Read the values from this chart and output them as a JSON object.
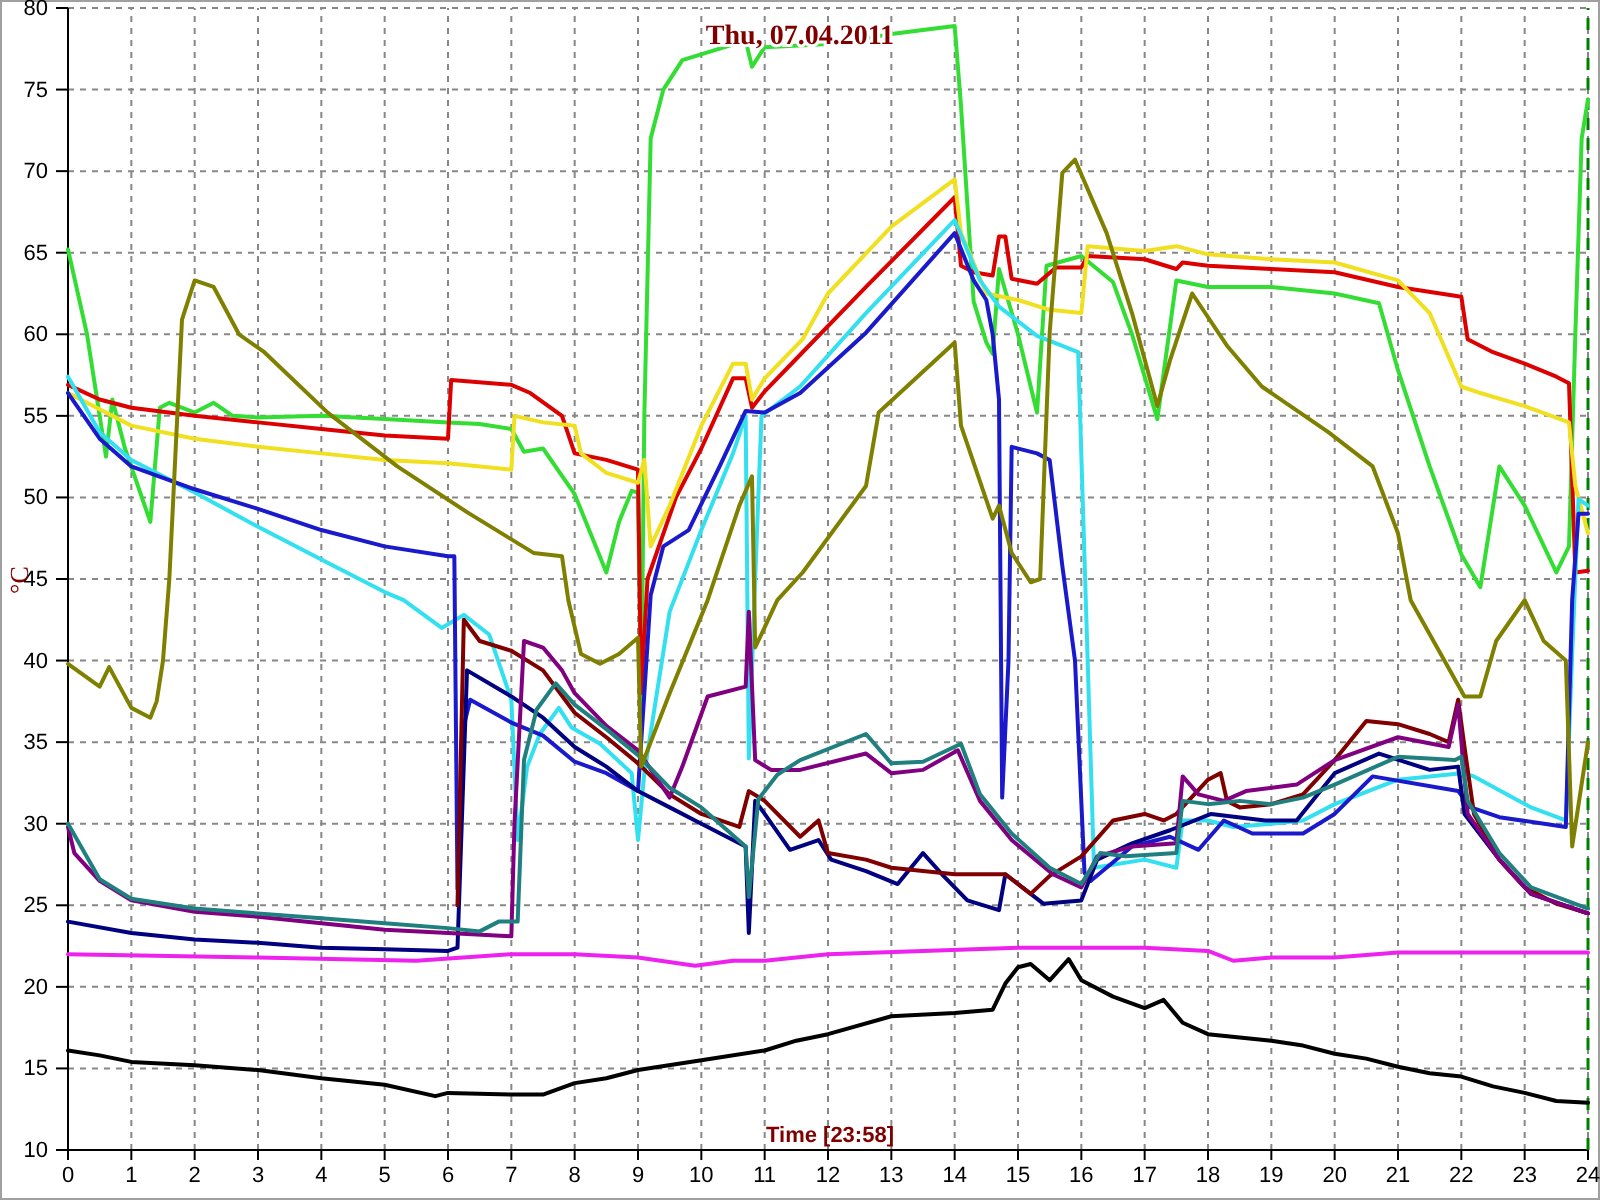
{
  "chart_data": {
    "type": "line",
    "title": "Thu, 07.04.2011",
    "xlabel": "Time [23:58]",
    "ylabel": "°C",
    "xlim": [
      0,
      24
    ],
    "xticks": [
      0,
      1,
      2,
      3,
      4,
      5,
      6,
      7,
      8,
      9,
      10,
      11,
      12,
      13,
      14,
      15,
      16,
      17,
      18,
      19,
      20,
      21,
      22,
      23,
      24
    ],
    "ylim": [
      10,
      80
    ],
    "yticks": [
      10,
      15,
      20,
      25,
      30,
      35,
      40,
      45,
      50,
      55,
      60,
      65,
      70,
      75,
      80
    ],
    "grid": true,
    "marker": "none",
    "line_style": "solid",
    "ref_lines": [
      {
        "axis": "x",
        "value": 24,
        "color": "#008000",
        "line_style": "dashed"
      }
    ],
    "series": [
      {
        "color": "#33dd33",
        "x": [
          0,
          0.3,
          0.6,
          0.7,
          0.9,
          1.3,
          1.45,
          1.6,
          2,
          2.3,
          2.6,
          3,
          4,
          5,
          6,
          6.5,
          7,
          7.2,
          7.5,
          8,
          8.5,
          8.7,
          8.9,
          9,
          9.05,
          9.1,
          9.2,
          9.4,
          9.7,
          10.2,
          10.7,
          10.8,
          11,
          12,
          13,
          14,
          14.1,
          14.3,
          14.5,
          14.6,
          14.7,
          15,
          15.3,
          15.45,
          16,
          16.5,
          16.8,
          17.2,
          17.5,
          18,
          19,
          20,
          20.7,
          21,
          21.5,
          22,
          22.3,
          22.6,
          23,
          23.5,
          23.7,
          23.8,
          23.9,
          24
        ],
        "values": [
          65.2,
          60,
          52.5,
          56,
          53,
          48.5,
          55.5,
          55.8,
          55.2,
          55.8,
          55,
          54.9,
          55,
          54.8,
          54.6,
          54.5,
          54.2,
          52.8,
          53,
          50.2,
          45.4,
          48.5,
          50.4,
          50.3,
          37,
          55,
          72,
          75,
          76.8,
          77.4,
          78,
          76.4,
          77.6,
          77.8,
          78.4,
          78.9,
          74,
          62,
          59.5,
          58.8,
          64,
          60,
          55.2,
          64.2,
          64.8,
          63.2,
          60,
          54.8,
          63.3,
          62.9,
          62.9,
          62.5,
          61.9,
          57.8,
          51.9,
          46.5,
          44.5,
          51.9,
          49.5,
          45.4,
          47,
          60,
          72,
          74.4
        ]
      },
      {
        "color": "#dd0000",
        "x": [
          0,
          0.5,
          1,
          2,
          3,
          4,
          5,
          6,
          6.05,
          7,
          7.3,
          7.8,
          8,
          8.5,
          9,
          9.05,
          9.15,
          9.6,
          10,
          10.5,
          10.7,
          10.8,
          11,
          11.5,
          12.6,
          14,
          14.1,
          14.3,
          14.6,
          14.7,
          14.8,
          14.9,
          15.3,
          15.6,
          16,
          16.1,
          17,
          17.5,
          17.6,
          18,
          19,
          20,
          21,
          22,
          22.1,
          22.5,
          23,
          23.5,
          23.7,
          23.8,
          24
        ],
        "values": [
          56.9,
          56,
          55.5,
          55,
          54.6,
          54.2,
          53.8,
          53.6,
          57.2,
          56.9,
          56.4,
          55,
          52.7,
          52.3,
          51.7,
          38,
          45,
          50,
          53,
          57.3,
          57.3,
          55.5,
          56.5,
          58.5,
          62.9,
          68.4,
          64.2,
          63.8,
          63.6,
          66,
          66,
          63.4,
          63.1,
          64.1,
          64.1,
          64.8,
          64.6,
          64,
          64.4,
          64.2,
          64,
          63.8,
          62.9,
          62.3,
          59.7,
          58.9,
          58.2,
          57.4,
          57,
          45.4,
          45.5
        ]
      },
      {
        "color": "#f0e020",
        "x": [
          0,
          0.3,
          1,
          2,
          3,
          4,
          5,
          6,
          7,
          7.05,
          7.5,
          8,
          8.1,
          8.5,
          9,
          9.1,
          9.2,
          9.5,
          10,
          10.5,
          10.7,
          10.8,
          11,
          11.6,
          12,
          13,
          14,
          14.1,
          14.5,
          15,
          15.5,
          16,
          16.1,
          17,
          17.5,
          18,
          19,
          20,
          21,
          21.5,
          22,
          22.3,
          23,
          23.7,
          23.8,
          24
        ],
        "values": [
          56.4,
          55.8,
          54.4,
          53.6,
          53.1,
          52.7,
          52.3,
          52.1,
          51.7,
          55,
          54.6,
          54.4,
          52.7,
          51.5,
          50.9,
          52.3,
          47,
          49.5,
          54.4,
          58.2,
          58.2,
          56,
          57.3,
          59.7,
          62.5,
          66.6,
          69.5,
          66.2,
          62.5,
          62.1,
          61.5,
          61.3,
          65.4,
          65.1,
          65.4,
          64.9,
          64.6,
          64.4,
          63.3,
          61.3,
          56.8,
          56.4,
          55.6,
          54.6,
          50.7,
          47.8
        ]
      },
      {
        "color": "#33e0f0",
        "x": [
          0,
          0.5,
          1,
          2,
          3,
          4,
          5,
          5.3,
          5.9,
          6.25,
          6.65,
          7,
          7.1,
          7.25,
          7.45,
          7.75,
          7.95,
          8.4,
          8.9,
          9,
          9.1,
          9.5,
          10,
          10.5,
          10.7,
          10.75,
          10.85,
          10.95,
          11.56,
          12.6,
          14,
          14.4,
          14.7,
          15.3,
          15.95,
          16.1,
          16.2,
          17,
          17.5,
          17.6,
          18,
          18.4,
          19,
          19.5,
          20,
          21,
          22,
          22.2,
          23.1,
          23.65,
          23.75,
          23.85,
          24
        ],
        "values": [
          57.4,
          54,
          52.3,
          50.3,
          48.2,
          46.2,
          44.2,
          43.7,
          42,
          42.8,
          41.6,
          37.6,
          29,
          33.5,
          35.5,
          37.1,
          35.9,
          34.9,
          33.1,
          29,
          33.1,
          43,
          48,
          52.7,
          55,
          34,
          45,
          55,
          56.8,
          61.3,
          67,
          63.3,
          61.7,
          59.9,
          58.9,
          40,
          27.3,
          27.8,
          27.3,
          30.2,
          30.2,
          29.8,
          30,
          30.2,
          31.2,
          32.7,
          33.1,
          32.9,
          31,
          30.2,
          40.4,
          49.9,
          49.5
        ]
      },
      {
        "color": "#1a1acc",
        "x": [
          0,
          0.5,
          1,
          2,
          3,
          4,
          5,
          6,
          6.1,
          6.15,
          6.25,
          6.35,
          7,
          7.5,
          8,
          8.5,
          9,
          9.2,
          9.4,
          9.8,
          10.3,
          10.7,
          11,
          11.56,
          12.6,
          14,
          14.3,
          14.5,
          14.6,
          14.7,
          14.75,
          14.85,
          14.9,
          15.3,
          15.5,
          15.7,
          15.9,
          16.05,
          16.15,
          16.8,
          17.4,
          17.85,
          18.25,
          18.7,
          19.5,
          20,
          20.6,
          21.95,
          22.15,
          22.6,
          23.65,
          23.75,
          23.85,
          24
        ],
        "values": [
          56.4,
          53.6,
          51.9,
          50.5,
          49.3,
          48,
          47,
          46.4,
          46.4,
          26,
          36,
          37.6,
          36.2,
          35.4,
          33.8,
          33.1,
          32,
          44,
          47,
          48,
          52,
          55.3,
          55.2,
          56.4,
          60.1,
          66.2,
          63.3,
          62.1,
          60,
          56,
          31.6,
          40,
          53.1,
          52.7,
          52.3,
          45.8,
          40,
          27,
          26.5,
          28.6,
          29.2,
          28.4,
          30.2,
          29.4,
          29.4,
          30.6,
          32.9,
          32,
          31,
          30.4,
          29.8,
          43.7,
          49,
          49
        ]
      },
      {
        "color": "#000080",
        "x": [
          0,
          1,
          2,
          3,
          4,
          5,
          6,
          6.15,
          6.3,
          7,
          7.5,
          8,
          8.5,
          9,
          9.5,
          10,
          10.7,
          10.75,
          10.85,
          11,
          11.4,
          11.85,
          12.05,
          12.6,
          13.1,
          13.5,
          13.8,
          14.2,
          14.7,
          14.8,
          15.4,
          16,
          16.25,
          16.8,
          17.4,
          18.05,
          18.9,
          19.4,
          20,
          20.7,
          21.5,
          21.95,
          22.05,
          22.6,
          23.1,
          24
        ],
        "values": [
          24,
          23.3,
          22.9,
          22.7,
          22.4,
          22.3,
          22.2,
          22.4,
          39.4,
          37.8,
          36.5,
          34.7,
          33.5,
          32,
          31,
          30,
          28.6,
          23.3,
          31.4,
          30.6,
          28.4,
          29,
          27.8,
          27.1,
          26.3,
          28.2,
          26.9,
          25.3,
          24.7,
          26.9,
          25.1,
          25.3,
          27.8,
          28.8,
          29.6,
          30.6,
          30.2,
          30.2,
          33.1,
          34.3,
          33.3,
          33.5,
          30.6,
          27.8,
          25.7,
          24.5
        ]
      },
      {
        "color": "#800000",
        "x": [
          6.15,
          6.25,
          6.5,
          7,
          7.5,
          8,
          8.5,
          9,
          9.5,
          10,
          10.6,
          10.75,
          11,
          11.56,
          11.85,
          12,
          12.6,
          13,
          14,
          14.8,
          15.2,
          15.5,
          16,
          16.5,
          17,
          17.3,
          17.5,
          18,
          18.2,
          18.3,
          18.5,
          19,
          19.5,
          20,
          20.5,
          21,
          21.5,
          21.8,
          21.95,
          22.05,
          22.2,
          22.6,
          23,
          23.5,
          24
        ],
        "values": [
          25,
          42.5,
          41.2,
          40.6,
          39.4,
          36.8,
          35.3,
          33.7,
          31.8,
          30.6,
          29.8,
          32,
          31.4,
          29.2,
          30.2,
          28.2,
          27.8,
          27.3,
          26.9,
          26.9,
          25.7,
          26.8,
          28,
          30.2,
          30.6,
          30.2,
          30.6,
          32.7,
          33.1,
          31.4,
          31,
          31.2,
          31.8,
          33.9,
          36.3,
          36.1,
          35.5,
          35,
          37.6,
          34.7,
          30.6,
          27.8,
          26.1,
          25.1,
          24.5
        ]
      },
      {
        "color": "#800080",
        "x": [
          0,
          0.1,
          0.5,
          1,
          2,
          3,
          4,
          5,
          6,
          7,
          7.05,
          7.2,
          7.5,
          7.8,
          8,
          8.5,
          9,
          9.5,
          9.7,
          10.1,
          10.7,
          10.75,
          10.85,
          11.1,
          11.56,
          12.6,
          13,
          13.5,
          14.05,
          14.4,
          14.9,
          15.55,
          16,
          16.25,
          16.8,
          17.5,
          17.6,
          17.85,
          18.25,
          18.6,
          19.4,
          20,
          21,
          21.8,
          21.95,
          22.1,
          22.6,
          23.1,
          24
        ],
        "values": [
          29.8,
          28.2,
          26.5,
          25.3,
          24.6,
          24.3,
          23.9,
          23.5,
          23.3,
          23.1,
          30,
          41.2,
          40.8,
          39.4,
          38,
          36,
          34.5,
          31.6,
          33.5,
          37.8,
          38.4,
          43,
          33.9,
          33.3,
          33.3,
          34.3,
          33.1,
          33.3,
          34.5,
          31.4,
          29,
          26.9,
          26.1,
          28,
          28.6,
          28.8,
          32.9,
          31.8,
          31.4,
          32,
          32.4,
          33.9,
          35.3,
          34.7,
          37.3,
          30.6,
          27.8,
          25.7,
          24.5
        ]
      },
      {
        "color": "#208080",
        "x": [
          0,
          0.5,
          1,
          2,
          3,
          4,
          5,
          6,
          6.5,
          6.8,
          7.1,
          7.2,
          7.4,
          7.7,
          8,
          8.5,
          9,
          9.5,
          10,
          10.7,
          10.75,
          10.9,
          11.2,
          11.56,
          12.6,
          13,
          13.5,
          14.1,
          14.4,
          14.9,
          15.5,
          16,
          16.3,
          16.7,
          17.5,
          17.6,
          18,
          18.5,
          19,
          19.5,
          20,
          21,
          21.9,
          22,
          22.1,
          22.6,
          23.1,
          24
        ],
        "values": [
          30,
          26.6,
          25.4,
          24.8,
          24.5,
          24.2,
          23.9,
          23.6,
          23.4,
          24,
          24,
          33.9,
          37,
          38.6,
          37.3,
          35.8,
          34.2,
          32.2,
          31,
          28.6,
          25.5,
          31.5,
          33,
          33.9,
          35.5,
          33.7,
          33.8,
          34.9,
          31.8,
          29.4,
          27.3,
          26.3,
          28.2,
          28,
          28.2,
          31.4,
          31.2,
          31.4,
          31.2,
          31.6,
          32.4,
          34.1,
          33.9,
          34.1,
          31.4,
          28.2,
          26.1,
          24.8
        ]
      },
      {
        "color": "#808000",
        "x": [
          0,
          0.5,
          0.65,
          1,
          1.3,
          1.4,
          1.5,
          1.6,
          1.8,
          2,
          2.3,
          2.7,
          3.1,
          4.1,
          5.2,
          6.3,
          7.35,
          7.8,
          7.9,
          8.1,
          8.4,
          8.7,
          9,
          9.05,
          9.5,
          10.1,
          10.6,
          10.8,
          10.85,
          11.2,
          11.6,
          12.6,
          12.8,
          14,
          14.1,
          14.6,
          14.7,
          14.9,
          15.2,
          15.35,
          15.5,
          15.7,
          15.9,
          16.4,
          16.8,
          17.2,
          17.4,
          17.75,
          18.3,
          18.85,
          19.9,
          20.6,
          21,
          21.2,
          22.05,
          22.3,
          22.55,
          23,
          23.3,
          23.65,
          23.75,
          24
        ],
        "values": [
          39.8,
          38.4,
          39.6,
          37.1,
          36.5,
          37.5,
          40,
          45,
          60.9,
          63.3,
          62.9,
          60,
          58.9,
          55.2,
          51.9,
          49.1,
          46.6,
          46.4,
          43.7,
          40.4,
          39.8,
          40.4,
          41.4,
          33.5,
          38,
          43.7,
          49.5,
          51.3,
          40.8,
          43.7,
          45.4,
          50.7,
          55.2,
          59.5,
          54.4,
          48.7,
          49.5,
          46.6,
          44.8,
          45,
          60.1,
          69.9,
          70.7,
          66.2,
          61.3,
          55.6,
          58.4,
          62.5,
          59.3,
          56.8,
          54,
          51.9,
          47.8,
          43.7,
          37.8,
          37.8,
          41.2,
          43.7,
          41.2,
          40,
          28.6,
          35
        ]
      },
      {
        "color": "#ee22ee",
        "x": [
          0,
          3,
          5.5,
          7,
          8,
          9,
          9.9,
          10.5,
          11,
          11.5,
          12,
          15,
          17,
          18,
          18.4,
          19,
          20,
          21,
          22,
          24
        ],
        "values": [
          22,
          21.8,
          21.6,
          22,
          22,
          21.8,
          21.3,
          21.6,
          21.6,
          21.8,
          22,
          22.4,
          22.4,
          22.2,
          21.6,
          21.8,
          21.8,
          22.1,
          22.1,
          22.1
        ]
      },
      {
        "color": "#000000",
        "x": [
          0,
          0.5,
          1,
          2,
          3,
          4,
          5,
          5.8,
          6,
          7,
          7.5,
          8,
          8.5,
          9,
          10,
          11,
          11.5,
          12,
          13,
          14,
          14.6,
          14.8,
          15,
          15.2,
          15.5,
          15.8,
          16,
          16.5,
          17,
          17.3,
          17.6,
          18,
          18.5,
          19,
          19.5,
          20,
          20.5,
          21,
          21.5,
          22,
          22.5,
          23,
          23.5,
          24
        ],
        "values": [
          16.1,
          15.8,
          15.4,
          15.2,
          14.9,
          14.4,
          14,
          13.3,
          13.5,
          13.4,
          13.4,
          14.1,
          14.4,
          14.9,
          15.5,
          16.1,
          16.7,
          17.1,
          18.2,
          18.4,
          18.6,
          20.2,
          21.2,
          21.4,
          20.4,
          21.7,
          20.4,
          19.4,
          18.7,
          19.2,
          17.8,
          17.1,
          16.9,
          16.7,
          16.4,
          15.9,
          15.6,
          15.1,
          14.7,
          14.5,
          13.9,
          13.5,
          13,
          12.9
        ]
      }
    ]
  }
}
